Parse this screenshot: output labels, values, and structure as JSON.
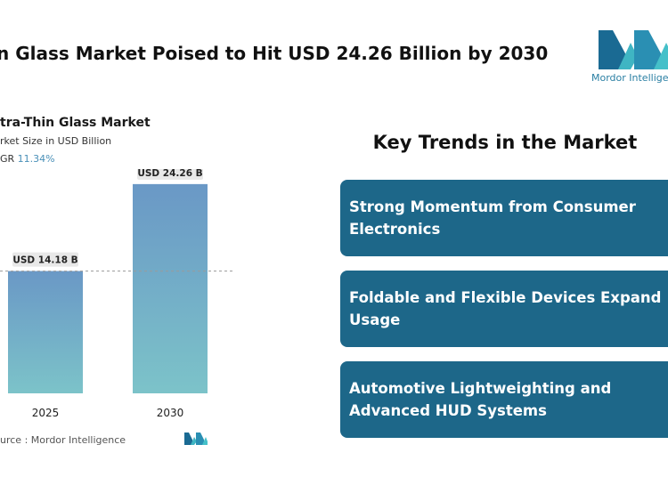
{
  "headline": "n Glass Market Poised to Hit USD 24.26 Billion by 2030",
  "logo": {
    "icon": "mordor-intelligence-logo",
    "text": "Mordor Intelligence"
  },
  "chart_header": {
    "title": "tra-Thin Glass Market",
    "subtitle": "rket Size in USD Billion",
    "cagr_label": "GR",
    "cagr_value": "11.34%"
  },
  "chart_data": {
    "type": "bar",
    "title": "tra-Thin Glass Market",
    "ylabel": "rket Size in USD Billion",
    "categories": [
      "2025",
      "2030"
    ],
    "values": [
      14.18,
      24.26
    ],
    "data_labels": [
      "USD 14.18 B",
      "USD 24.26 B"
    ],
    "ylim": [
      0,
      26
    ],
    "grid": false,
    "reference_line": 14.18,
    "colors": {
      "bar_top": "#6a98c6",
      "bar_bottom": "#7cc3c9",
      "label_bg": "#e8e8e8"
    }
  },
  "source": "urce :  Mordor Intelligence",
  "trends": {
    "title": "Key Trends in the Market",
    "items": [
      {
        "text": "Strong Momentum from Consumer Electronics"
      },
      {
        "text": "Foldable and Flexible Devices Expand Usage"
      },
      {
        "text": "Automotive Lightweighting and Advanced HUD Systems"
      }
    ]
  },
  "colors": {
    "accent": "#1d6789",
    "logo": "#2a7fa3"
  }
}
